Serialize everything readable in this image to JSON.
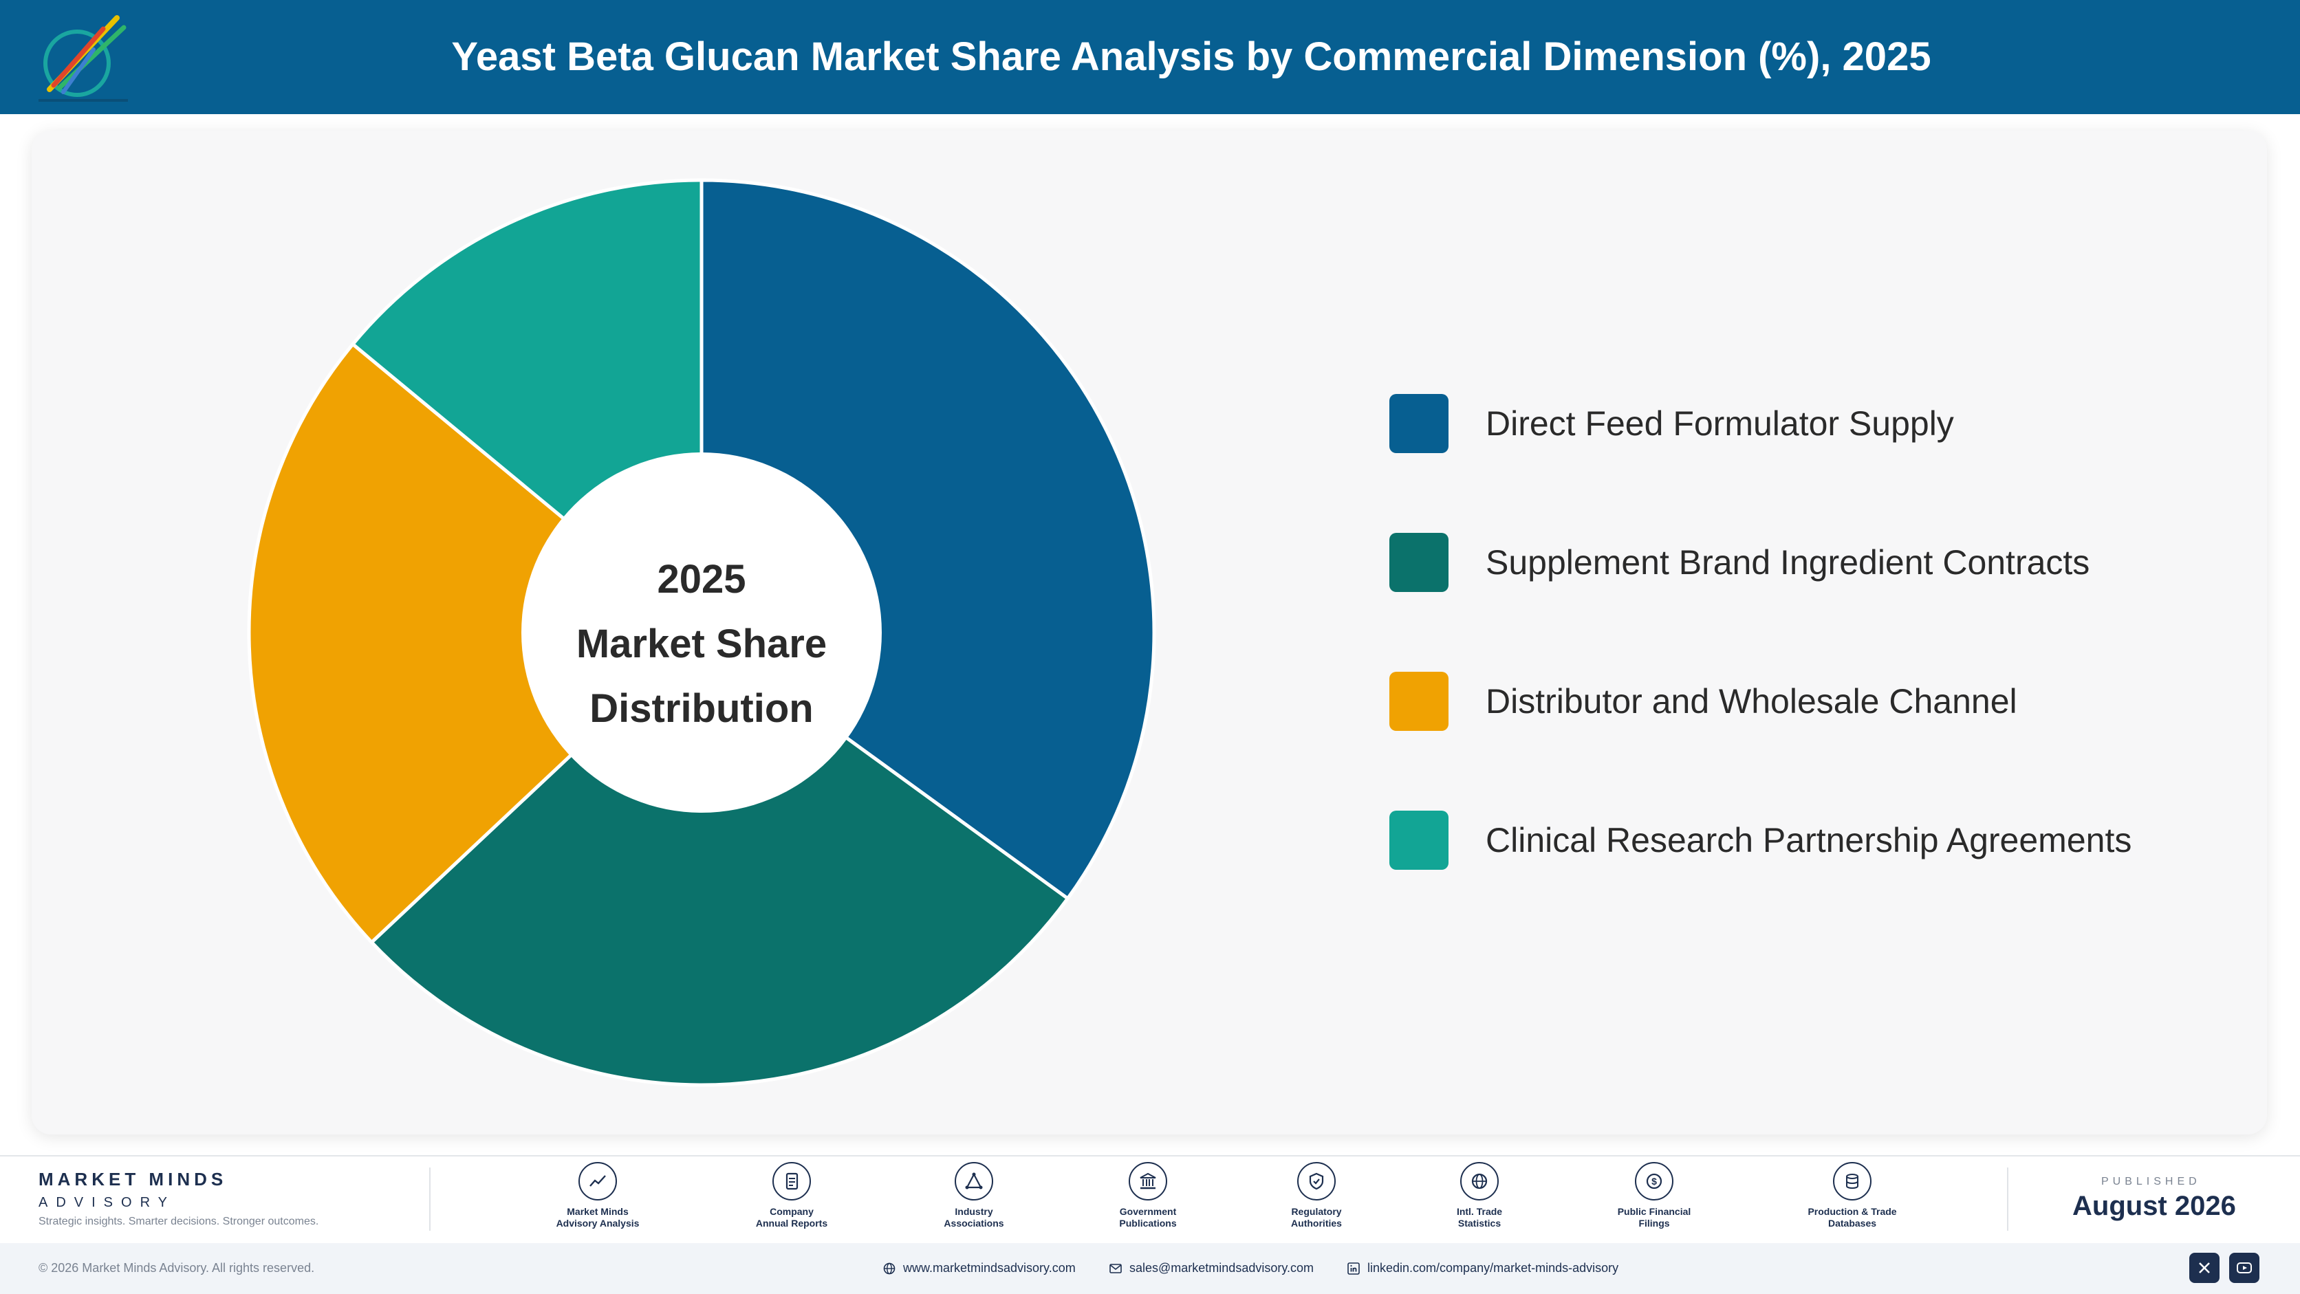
{
  "header": {
    "title": "Yeast Beta Glucan Market Share Analysis by Commercial Dimension (%), 2025"
  },
  "chart_data": {
    "type": "pie",
    "title": "Yeast Beta Glucan Market Share Analysis by Commercial Dimension (%), 2025",
    "center_label": [
      "2025",
      "Market Share",
      "Distribution"
    ],
    "categories": [
      "Direct Feed Formulator Supply",
      "Supplement Brand Ingredient Contracts",
      "Distributor and Wholesale Channel",
      "Clinical Research Partnership Agreements"
    ],
    "values": [
      35,
      28,
      23,
      14
    ],
    "colors": [
      "#075f91",
      "#0b726b",
      "#f0a202",
      "#12a595"
    ],
    "legend_position": "right"
  },
  "footer": {
    "brand_name": "MARKET MINDS",
    "brand_sub": "ADVISORY",
    "tagline": "Strategic insights. Smarter decisions. Stronger outcomes.",
    "sources": [
      {
        "line1": "Market Minds",
        "line2": "Advisory Analysis",
        "icon": "trend-chart-icon"
      },
      {
        "line1": "Company",
        "line2": "Annual Reports",
        "icon": "document-icon"
      },
      {
        "line1": "Industry",
        "line2": "Associations",
        "icon": "network-icon"
      },
      {
        "line1": "Government",
        "line2": "Publications",
        "icon": "government-building-icon"
      },
      {
        "line1": "Regulatory",
        "line2": "Authorities",
        "icon": "shield-check-icon"
      },
      {
        "line1": "Intl. Trade",
        "line2": "Statistics",
        "icon": "globe-icon"
      },
      {
        "line1": "Public Financial",
        "line2": "Filings",
        "icon": "dollar-coin-icon"
      },
      {
        "line1": "Production & Trade",
        "line2": "Databases",
        "icon": "database-icon"
      }
    ],
    "published_label": "PUBLISHED",
    "published_date": "August 2026",
    "copyright": "© 2026 Market Minds Advisory. All rights reserved.",
    "website": "www.marketmindsadvisory.com",
    "email": "sales@marketmindsadvisory.com",
    "linkedin": "linkedin.com/company/market-minds-advisory"
  }
}
